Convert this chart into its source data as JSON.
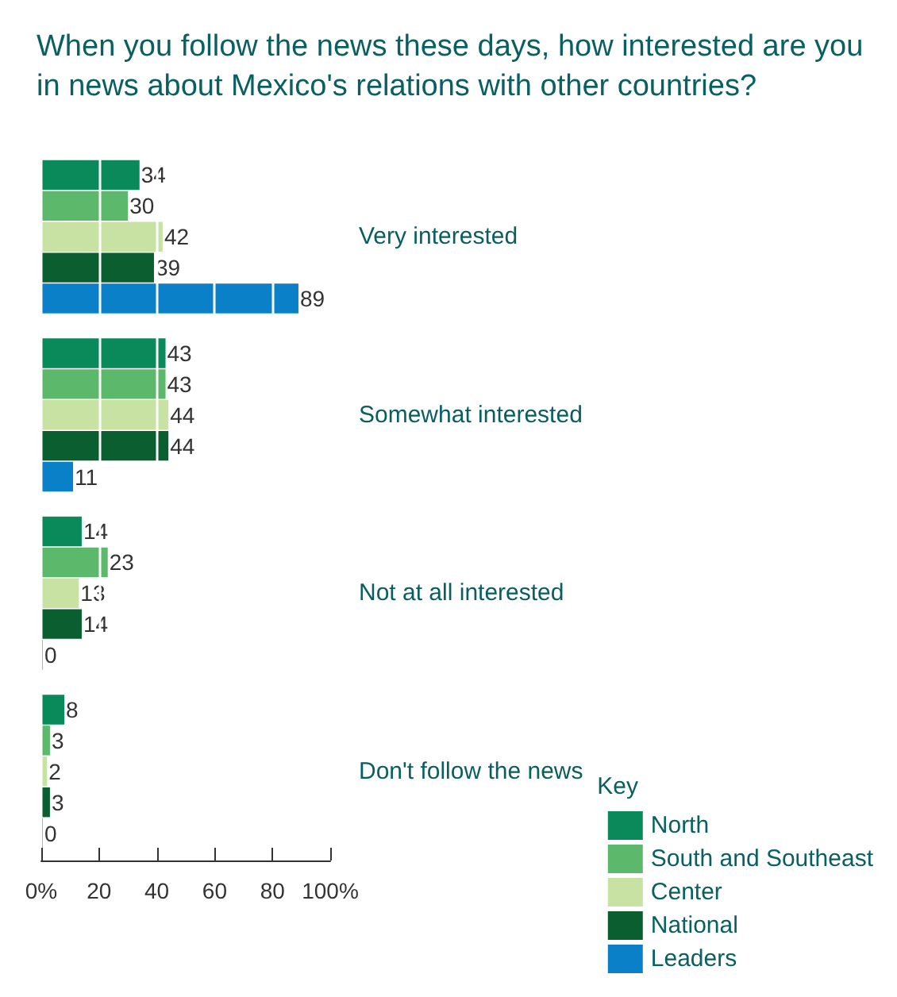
{
  "chart_data": {
    "type": "bar",
    "orientation": "horizontal",
    "title": "When you follow the news these days, how interested are you in news about Mexico's relations with other countries?",
    "categories": [
      "Very interested",
      "Somewhat interested",
      "Not at all interested",
      "Don't follow the news"
    ],
    "series": [
      {
        "name": "North",
        "color": "#0a8a5a",
        "values": [
          34,
          43,
          14,
          8
        ]
      },
      {
        "name": "South and Southeast",
        "color": "#5cb86a",
        "values": [
          30,
          43,
          23,
          3
        ]
      },
      {
        "name": "Center",
        "color": "#c8e2a4",
        "values": [
          42,
          44,
          13,
          2
        ]
      },
      {
        "name": "National",
        "color": "#0b5e30",
        "values": [
          39,
          44,
          14,
          3
        ]
      },
      {
        "name": "Leaders",
        "color": "#0a80c8",
        "values": [
          89,
          11,
          0,
          0
        ]
      }
    ],
    "xlim": [
      0,
      100
    ],
    "xticks": [
      {
        "value": 0,
        "label": "0%"
      },
      20,
      40,
      60,
      80,
      {
        "value": 100,
        "label": "100%"
      }
    ],
    "data_labels": true,
    "legend": "bottom right",
    "legend_title": "Key",
    "grid": "x"
  }
}
